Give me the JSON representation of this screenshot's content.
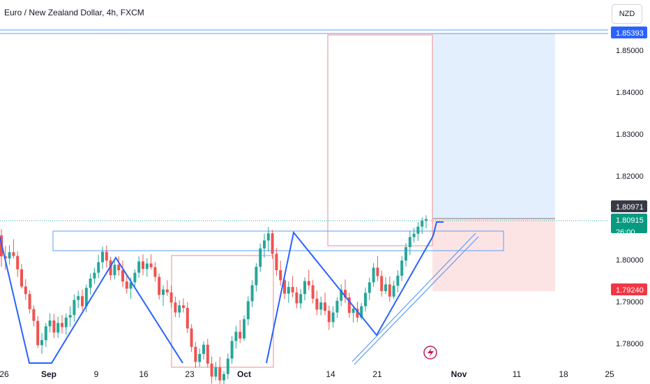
{
  "header": {
    "title": "Euro / New Zealand Dollar, 4h, FXCM",
    "currency": "NZD"
  },
  "chart_data": {
    "type": "candlestick",
    "instrument": "Euro / New Zealand Dollar",
    "timeframe": "4h",
    "source": "FXCM",
    "y_ticks": [
      "1.85000",
      "1.84000",
      "1.83000",
      "1.82000",
      "1.80000",
      "1.79000",
      "1.78000"
    ],
    "y_range": [
      1.7757,
      1.8611
    ],
    "x_ticks": [
      "26",
      "Sep",
      "9",
      "16",
      "23",
      "Oct",
      "14",
      "21",
      "Nov",
      "11",
      "18",
      "25"
    ],
    "price_labels": [
      {
        "id": "resistance-line",
        "text": "1.85393",
        "value": 1.85393,
        "color": "#2962ff"
      },
      {
        "id": "close",
        "text": "1.80971",
        "value": 1.80971,
        "color": "#363a45"
      },
      {
        "id": "last",
        "text": "1.80915",
        "value": 1.80915,
        "color": "#089981"
      },
      {
        "id": "stop",
        "text": "1.79240",
        "value": 1.7924,
        "color": "#f23645"
      }
    ],
    "countdown": "26:00",
    "colors": {
      "up": "#26a69a",
      "down": "#ef5350",
      "drawing": "#2962ff",
      "target_fill": "#e3effd",
      "stop_fill": "#fde4e4"
    },
    "candles": [
      [
        1.8058,
        1.8073,
        1.7983,
        1.8008
      ],
      [
        1.8008,
        1.8033,
        1.7976,
        1.8003
      ],
      [
        1.8003,
        1.8035,
        1.7988,
        1.8018
      ],
      [
        1.8018,
        1.8049,
        1.8003,
        1.8009
      ],
      [
        1.8009,
        1.802,
        1.7959,
        1.7977
      ],
      [
        1.7977,
        1.799,
        1.7931,
        1.7936
      ],
      [
        1.7936,
        1.7954,
        1.7904,
        1.7918
      ],
      [
        1.7918,
        1.7927,
        1.7872,
        1.7882
      ],
      [
        1.7882,
        1.7891,
        1.7841,
        1.7854
      ],
      [
        1.7854,
        1.7865,
        1.7789,
        1.7796
      ],
      [
        1.7796,
        1.7825,
        1.7775,
        1.7808
      ],
      [
        1.7808,
        1.7849,
        1.7792,
        1.7841
      ],
      [
        1.7841,
        1.7872,
        1.7827,
        1.7855
      ],
      [
        1.7855,
        1.7871,
        1.7813,
        1.7826
      ],
      [
        1.7826,
        1.7864,
        1.7814,
        1.7849
      ],
      [
        1.7849,
        1.7868,
        1.7824,
        1.7839
      ],
      [
        1.7839,
        1.7872,
        1.7821,
        1.7862
      ],
      [
        1.7862,
        1.7889,
        1.784,
        1.7868
      ],
      [
        1.7868,
        1.7917,
        1.7852,
        1.7904
      ],
      [
        1.7904,
        1.7926,
        1.7885,
        1.7913
      ],
      [
        1.7913,
        1.7929,
        1.7879,
        1.7889
      ],
      [
        1.7889,
        1.7941,
        1.7875,
        1.7933
      ],
      [
        1.7933,
        1.7967,
        1.7917,
        1.7955
      ],
      [
        1.7955,
        1.7981,
        1.7942,
        1.7969
      ],
      [
        1.7969,
        1.8012,
        1.7956,
        1.7994
      ],
      [
        1.7994,
        1.8031,
        1.7978,
        1.8019
      ],
      [
        1.8019,
        1.8034,
        1.7982,
        1.7998
      ],
      [
        1.7998,
        1.8007,
        1.7951,
        1.7963
      ],
      [
        1.7963,
        1.7997,
        1.7953,
        1.7988
      ],
      [
        1.7988,
        1.8008,
        1.7962,
        1.7975
      ],
      [
        1.7975,
        1.7998,
        1.7935,
        1.7948
      ],
      [
        1.7948,
        1.7961,
        1.7919,
        1.7931
      ],
      [
        1.7931,
        1.7958,
        1.7907,
        1.7946
      ],
      [
        1.7946,
        1.7977,
        1.7934,
        1.7969
      ],
      [
        1.7969,
        1.8008,
        1.7957,
        1.7996
      ],
      [
        1.7996,
        1.8013,
        1.7963,
        1.7978
      ],
      [
        1.7978,
        1.8004,
        1.7959,
        1.7991
      ],
      [
        1.7991,
        1.8013,
        1.7976,
        1.7982
      ],
      [
        1.7982,
        1.7995,
        1.7948,
        1.7959
      ],
      [
        1.7959,
        1.7967,
        1.7905,
        1.7916
      ],
      [
        1.7916,
        1.7939,
        1.789,
        1.7929
      ],
      [
        1.7929,
        1.7951,
        1.7914,
        1.7922
      ],
      [
        1.7922,
        1.7938,
        1.7886,
        1.7898
      ],
      [
        1.7898,
        1.7912,
        1.7863,
        1.7874
      ],
      [
        1.7874,
        1.7903,
        1.7862,
        1.7891
      ],
      [
        1.7891,
        1.7908,
        1.7874,
        1.7885
      ],
      [
        1.7885,
        1.7899,
        1.7825,
        1.7836
      ],
      [
        1.7836,
        1.7846,
        1.778,
        1.7792
      ],
      [
        1.7792,
        1.7804,
        1.7742,
        1.7756
      ],
      [
        1.7756,
        1.7788,
        1.7745,
        1.7775
      ],
      [
        1.7775,
        1.7805,
        1.7762,
        1.7797
      ],
      [
        1.7797,
        1.7811,
        1.7743,
        1.7752
      ],
      [
        1.7752,
        1.7769,
        1.7704,
        1.7721
      ],
      [
        1.7721,
        1.7756,
        1.7712,
        1.7743
      ],
      [
        1.7743,
        1.7768,
        1.7701,
        1.7712
      ],
      [
        1.7712,
        1.7734,
        1.7683,
        1.7727
      ],
      [
        1.7727,
        1.7776,
        1.7715,
        1.7764
      ],
      [
        1.7764,
        1.7818,
        1.7752,
        1.7806
      ],
      [
        1.7806,
        1.7842,
        1.7788,
        1.7828
      ],
      [
        1.7828,
        1.7856,
        1.7801,
        1.7812
      ],
      [
        1.7812,
        1.7867,
        1.7806,
        1.7858
      ],
      [
        1.7858,
        1.7913,
        1.7843,
        1.7901
      ],
      [
        1.7901,
        1.7951,
        1.7887,
        1.7939
      ],
      [
        1.7939,
        1.7992,
        1.7924,
        1.7983
      ],
      [
        1.7983,
        1.8039,
        1.7971,
        1.8027
      ],
      [
        1.8027,
        1.8062,
        1.8005,
        1.8046
      ],
      [
        1.8046,
        1.8078,
        1.8019,
        1.8063
      ],
      [
        1.8063,
        1.8071,
        1.8002,
        1.8014
      ],
      [
        1.8014,
        1.8028,
        1.7962,
        1.7975
      ],
      [
        1.7975,
        1.7998,
        1.7938,
        1.7951
      ],
      [
        1.7951,
        1.7966,
        1.7906,
        1.7919
      ],
      [
        1.7919,
        1.7948,
        1.7897,
        1.7935
      ],
      [
        1.7935,
        1.7961,
        1.7911,
        1.7922
      ],
      [
        1.7922,
        1.7935,
        1.7884,
        1.7896
      ],
      [
        1.7896,
        1.793,
        1.7883,
        1.7918
      ],
      [
        1.7918,
        1.7958,
        1.7903,
        1.7949
      ],
      [
        1.7949,
        1.7976,
        1.7928,
        1.7939
      ],
      [
        1.7939,
        1.7951,
        1.7896,
        1.7907
      ],
      [
        1.7907,
        1.7926,
        1.7868,
        1.7881
      ],
      [
        1.7881,
        1.7912,
        1.7867,
        1.7898
      ],
      [
        1.7898,
        1.7921,
        1.7868,
        1.7878
      ],
      [
        1.7878,
        1.789,
        1.7832,
        1.7851
      ],
      [
        1.7851,
        1.7889,
        1.7838,
        1.7874
      ],
      [
        1.7874,
        1.7911,
        1.7861,
        1.7902
      ],
      [
        1.7902,
        1.7942,
        1.7889,
        1.7928
      ],
      [
        1.7928,
        1.7953,
        1.7897,
        1.791
      ],
      [
        1.791,
        1.7921,
        1.7862,
        1.7873
      ],
      [
        1.7873,
        1.7889,
        1.785,
        1.7883
      ],
      [
        1.7883,
        1.79,
        1.7851,
        1.7862
      ],
      [
        1.7862,
        1.7897,
        1.7857,
        1.7889
      ],
      [
        1.7889,
        1.7934,
        1.7876,
        1.7921
      ],
      [
        1.7921,
        1.7957,
        1.7904,
        1.7946
      ],
      [
        1.7946,
        1.7992,
        1.7935,
        1.7981
      ],
      [
        1.7981,
        1.8009,
        1.7949,
        1.7961
      ],
      [
        1.7961,
        1.7974,
        1.7912,
        1.7925
      ],
      [
        1.7925,
        1.7958,
        1.7918,
        1.7941
      ],
      [
        1.7941,
        1.796,
        1.79,
        1.7912
      ],
      [
        1.7912,
        1.795,
        1.7907,
        1.7938
      ],
      [
        1.7938,
        1.7975,
        1.7922,
        1.7962
      ],
      [
        1.7962,
        1.8009,
        1.7949,
        1.7998
      ],
      [
        1.7998,
        1.804,
        1.7984,
        1.803
      ],
      [
        1.803,
        1.8069,
        1.8011,
        1.8054
      ],
      [
        1.8054,
        1.8076,
        1.8041,
        1.8062
      ],
      [
        1.8062,
        1.809,
        1.8045,
        1.8079
      ],
      [
        1.8079,
        1.8101,
        1.8062,
        1.8093
      ],
      [
        1.8093,
        1.8106,
        1.8075,
        1.8097
      ]
    ]
  }
}
